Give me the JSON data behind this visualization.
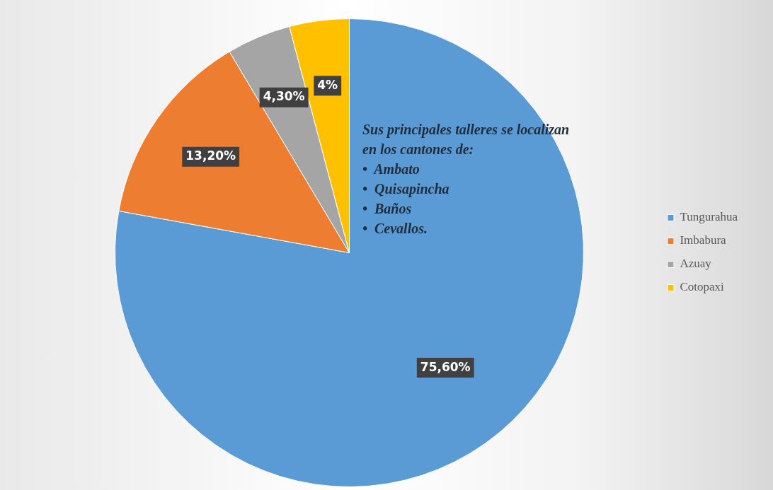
{
  "chart_data": {
    "type": "pie",
    "categories": [
      "Tungurahua",
      "Imbabura",
      "Azuay",
      "Cotopaxi"
    ],
    "values": [
      75.6,
      13.2,
      4.3,
      4
    ],
    "colors": [
      "#5b9bd5",
      "#ed7d31",
      "#a5a5a5",
      "#ffc000"
    ],
    "value_labels": [
      "75,60%",
      "13,20%",
      "4,30%",
      "4%"
    ],
    "legend": "right",
    "annotations": [
      "Sus principales talleres se localizan en los cantones de:",
      "•  Ambato",
      "•  Quisapincha",
      "•  Baños",
      "•  Cevallos."
    ]
  }
}
